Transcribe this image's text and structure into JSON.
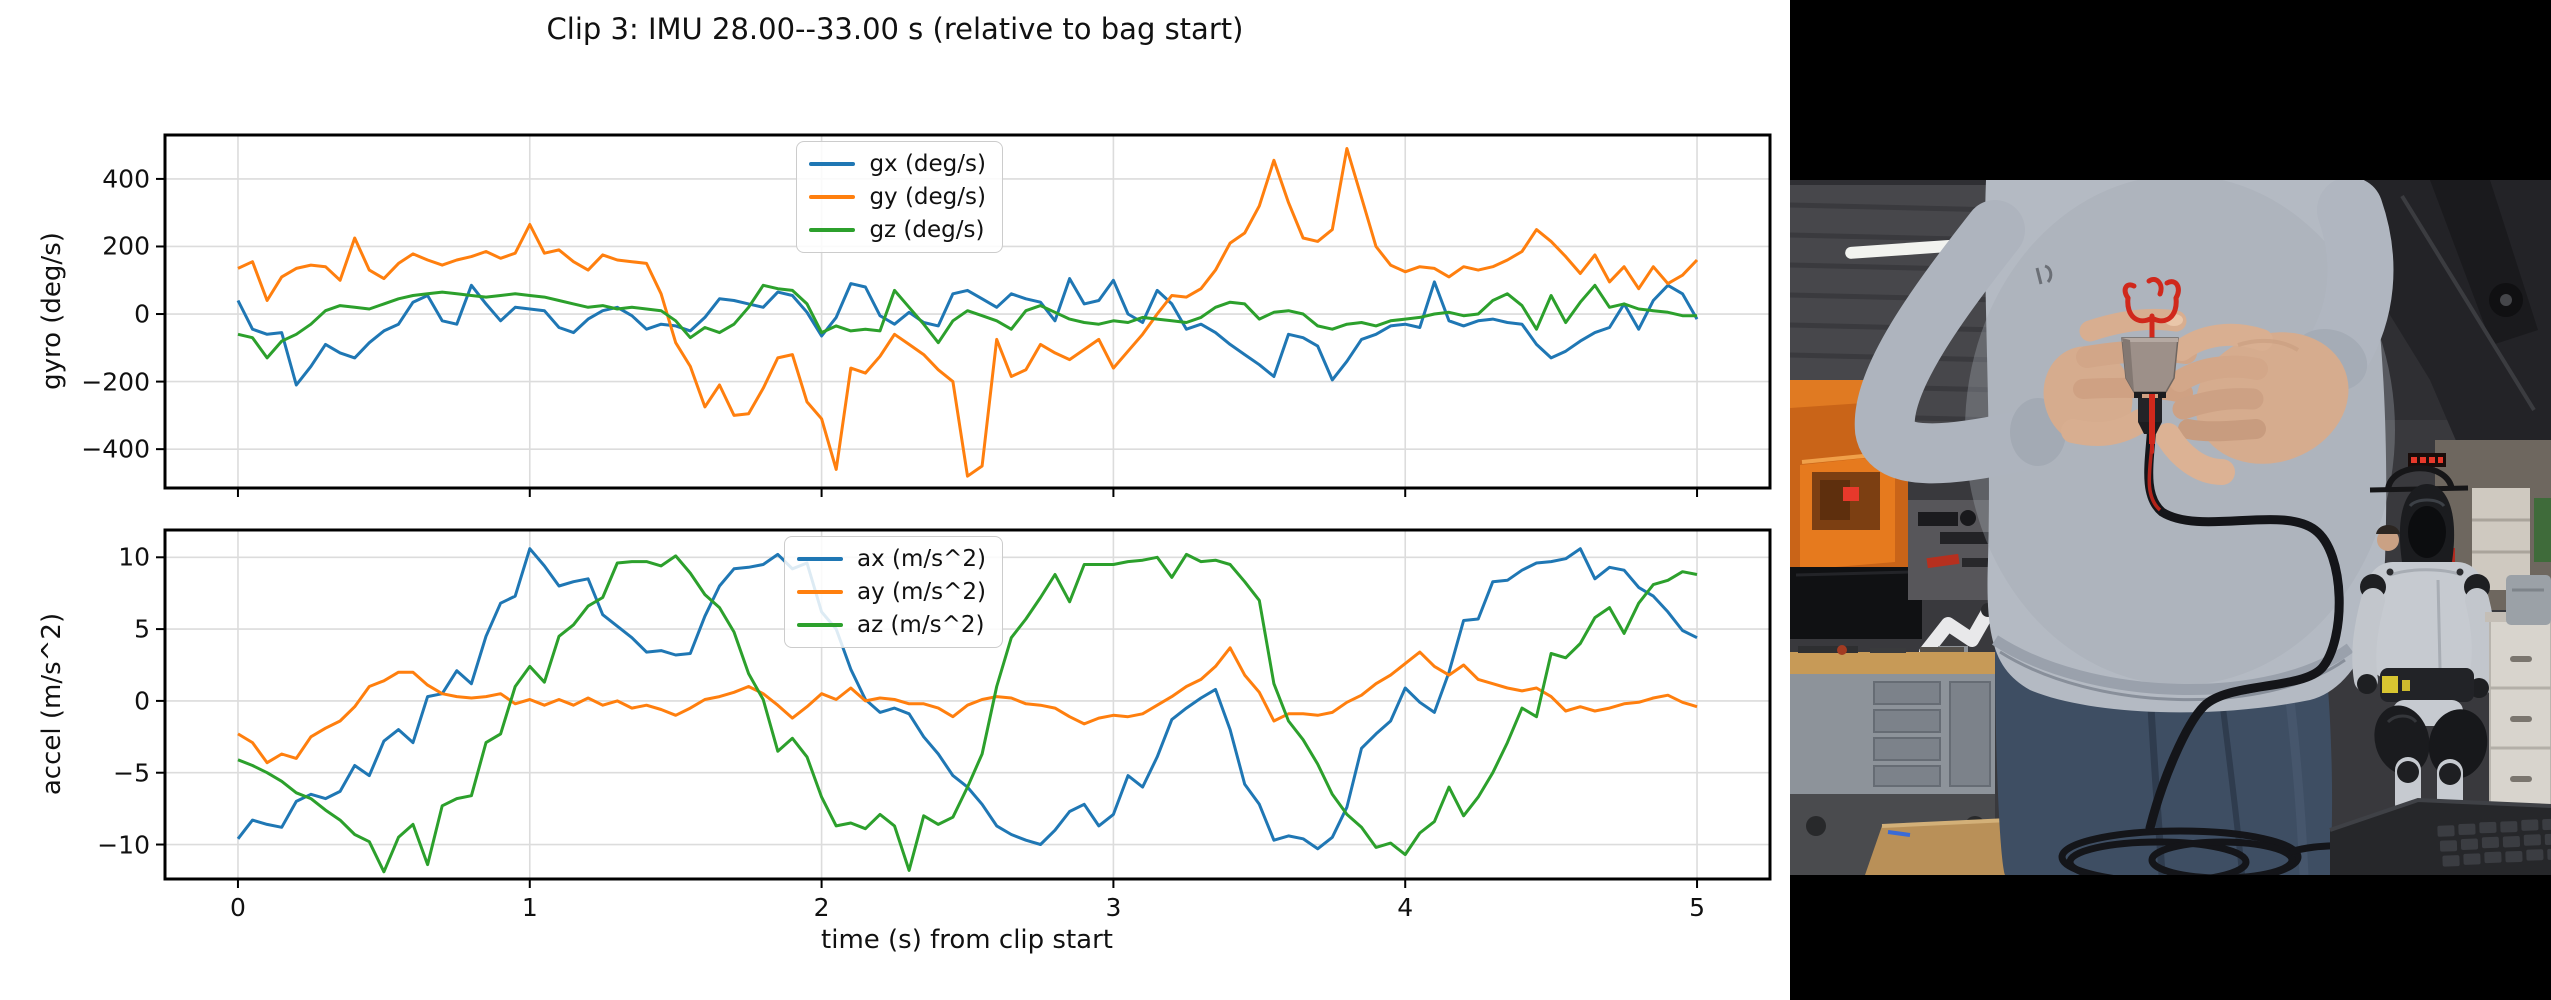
{
  "figure": {
    "title": "Clip 3: IMU 28.00--33.00 s (relative to bag start)",
    "xlabel": "time (s) from clip start",
    "gyro_ylabel": "gyro (deg/s)",
    "accel_ylabel": "accel (m/s^2)"
  },
  "colors": {
    "gx": "#1f77b4",
    "gy": "#ff7f0e",
    "gz": "#2ca02c",
    "ax": "#1f77b4",
    "ay": "#ff7f0e",
    "az": "#2ca02c",
    "grid": "#dcdcdc",
    "spine": "#000000"
  },
  "chart_data": [
    {
      "type": "line",
      "ylabel": "gyro (deg/s)",
      "legend": [
        "gx (deg/s)",
        "gy (deg/s)",
        "gz (deg/s)"
      ],
      "legend_position": "upper right",
      "grid": true,
      "x_start": 0,
      "x_step": 0.05,
      "n_points": 101,
      "xlim": [
        -0.25,
        5.25
      ],
      "ylim": [
        -515,
        530
      ],
      "xticks": [
        0,
        1,
        2,
        3,
        4,
        5
      ],
      "yticks": [
        -400,
        -200,
        0,
        200,
        400
      ],
      "series": [
        {
          "name": "gx (deg/s)",
          "color": "#1f77b4",
          "values": [
            40,
            -45,
            -60,
            -55,
            -210,
            -155,
            -90,
            -115,
            -130,
            -85,
            -50,
            -30,
            35,
            55,
            -20,
            -30,
            85,
            30,
            -20,
            20,
            15,
            10,
            -40,
            -55,
            -15,
            10,
            20,
            -5,
            -45,
            -30,
            -35,
            -50,
            -10,
            45,
            40,
            30,
            20,
            65,
            55,
            5,
            -65,
            -10,
            90,
            80,
            -5,
            -30,
            5,
            -25,
            -35,
            60,
            70,
            45,
            20,
            60,
            45,
            35,
            -20,
            105,
            30,
            40,
            100,
            0,
            -25,
            70,
            30,
            -45,
            -30,
            -55,
            -90,
            -120,
            -150,
            -185,
            -60,
            -70,
            -95,
            -195,
            -140,
            -75,
            -60,
            -35,
            -30,
            -40,
            95,
            -20,
            -35,
            -20,
            -15,
            -25,
            -30,
            -90,
            -130,
            -110,
            -80,
            -55,
            -40,
            30,
            -45,
            40,
            85,
            60,
            -15
          ]
        },
        {
          "name": "gy (deg/s)",
          "color": "#ff7f0e",
          "values": [
            135,
            155,
            40,
            110,
            135,
            145,
            140,
            100,
            225,
            130,
            105,
            150,
            178,
            160,
            145,
            160,
            170,
            185,
            165,
            180,
            265,
            180,
            190,
            155,
            130,
            175,
            160,
            155,
            150,
            60,
            -85,
            -155,
            -275,
            -210,
            -300,
            -295,
            -220,
            -130,
            -120,
            -260,
            -310,
            -460,
            -160,
            -175,
            -125,
            -60,
            -90,
            -120,
            -165,
            -200,
            -480,
            -450,
            -75,
            -185,
            -165,
            -90,
            -115,
            -135,
            -105,
            -75,
            -160,
            -110,
            -60,
            0,
            55,
            50,
            75,
            130,
            210,
            240,
            320,
            455,
            330,
            225,
            215,
            250,
            490,
            345,
            200,
            145,
            125,
            140,
            135,
            110,
            140,
            130,
            140,
            160,
            185,
            250,
            215,
            170,
            120,
            175,
            95,
            140,
            75,
            140,
            90,
            115,
            160
          ]
        },
        {
          "name": "gz (deg/s)",
          "color": "#2ca02c",
          "values": [
            -60,
            -70,
            -130,
            -80,
            -60,
            -30,
            10,
            25,
            20,
            15,
            30,
            45,
            55,
            60,
            65,
            60,
            55,
            50,
            55,
            60,
            55,
            50,
            40,
            30,
            20,
            25,
            15,
            20,
            15,
            10,
            -20,
            -70,
            -40,
            -55,
            -30,
            20,
            85,
            75,
            70,
            30,
            -55,
            -35,
            -50,
            -45,
            -50,
            70,
            20,
            -30,
            -85,
            -20,
            10,
            -5,
            -20,
            -45,
            10,
            25,
            5,
            -15,
            -25,
            -30,
            -20,
            -25,
            -10,
            -15,
            -20,
            -25,
            -10,
            20,
            35,
            30,
            -15,
            5,
            10,
            0,
            -35,
            -45,
            -30,
            -25,
            -35,
            -20,
            -15,
            -10,
            0,
            5,
            -5,
            0,
            40,
            60,
            25,
            -45,
            55,
            -25,
            35,
            85,
            20,
            30,
            15,
            10,
            5,
            -5,
            -5
          ]
        }
      ]
    },
    {
      "type": "line",
      "ylabel": "accel (m/s^2)",
      "xlabel": "time (s) from clip start",
      "legend": [
        "ax (m/s^2)",
        "ay (m/s^2)",
        "az (m/s^2)"
      ],
      "legend_position": "upper right",
      "grid": true,
      "x_start": 0,
      "x_step": 0.05,
      "n_points": 101,
      "xlim": [
        -0.25,
        5.25
      ],
      "ylim": [
        -12.4,
        11.9
      ],
      "xticks": [
        0,
        1,
        2,
        3,
        4,
        5
      ],
      "yticks": [
        -10,
        -5,
        0,
        5,
        10
      ],
      "series": [
        {
          "name": "ax (m/s^2)",
          "color": "#1f77b4",
          "values": [
            -9.6,
            -8.3,
            -8.6,
            -8.8,
            -7.0,
            -6.5,
            -6.8,
            -6.3,
            -4.5,
            -5.2,
            -2.8,
            -2.0,
            -2.9,
            0.3,
            0.5,
            2.1,
            1.2,
            4.5,
            6.8,
            7.3,
            10.6,
            9.4,
            8.0,
            8.3,
            8.5,
            6.0,
            5.2,
            4.4,
            3.4,
            3.5,
            3.2,
            3.3,
            5.9,
            8.0,
            9.2,
            9.3,
            9.5,
            10.2,
            9.2,
            9.6,
            6.2,
            5.0,
            2.2,
            0.1,
            -0.8,
            -0.5,
            -0.9,
            -2.5,
            -3.7,
            -5.2,
            -6.0,
            -7.2,
            -8.7,
            -9.3,
            -9.7,
            -10.0,
            -9.0,
            -7.7,
            -7.2,
            -8.7,
            -7.9,
            -5.2,
            -6.0,
            -3.9,
            -1.3,
            -0.5,
            0.2,
            0.8,
            -2.0,
            -5.8,
            -7.2,
            -9.7,
            -9.4,
            -9.6,
            -10.3,
            -9.5,
            -7.4,
            -3.3,
            -2.3,
            -1.4,
            0.9,
            -0.1,
            -0.8,
            2.0,
            5.6,
            5.7,
            8.3,
            8.4,
            9.1,
            9.6,
            9.7,
            9.9,
            10.6,
            8.5,
            9.3,
            9.1,
            7.9,
            7.3,
            6.2,
            4.9,
            4.4
          ]
        },
        {
          "name": "ay (m/s^2)",
          "color": "#ff7f0e",
          "values": [
            -2.3,
            -2.9,
            -4.3,
            -3.7,
            -4.0,
            -2.5,
            -1.9,
            -1.4,
            -0.4,
            1.0,
            1.4,
            2.0,
            2.0,
            1.1,
            0.5,
            0.3,
            0.2,
            0.3,
            0.5,
            -0.2,
            0.1,
            -0.3,
            0.1,
            -0.3,
            0.2,
            -0.3,
            0.0,
            -0.5,
            -0.3,
            -0.6,
            -1.0,
            -0.5,
            0.1,
            0.3,
            0.6,
            1.0,
            0.5,
            -0.3,
            -1.2,
            -0.4,
            0.5,
            0.1,
            0.9,
            0.0,
            0.2,
            0.1,
            -0.2,
            -0.2,
            -0.5,
            -1.1,
            -0.3,
            0.1,
            0.3,
            0.2,
            -0.2,
            -0.3,
            -0.5,
            -1.1,
            -1.6,
            -1.2,
            -1.0,
            -1.1,
            -0.9,
            -0.3,
            0.3,
            1.0,
            1.5,
            2.4,
            3.7,
            1.8,
            0.6,
            -1.4,
            -0.9,
            -0.9,
            -1.0,
            -0.8,
            -0.1,
            0.4,
            1.2,
            1.8,
            2.6,
            3.4,
            2.4,
            1.8,
            2.5,
            1.5,
            1.2,
            0.9,
            0.7,
            0.9,
            0.3,
            -0.7,
            -0.4,
            -0.7,
            -0.5,
            -0.2,
            -0.1,
            0.2,
            0.4,
            -0.1,
            -0.4
          ]
        },
        {
          "name": "az (m/s^2)",
          "color": "#2ca02c",
          "values": [
            -4.1,
            -4.5,
            -5.0,
            -5.6,
            -6.4,
            -6.8,
            -7.6,
            -8.3,
            -9.3,
            -9.8,
            -11.9,
            -9.5,
            -8.6,
            -11.4,
            -7.3,
            -6.8,
            -6.6,
            -2.9,
            -2.3,
            1.0,
            2.4,
            1.3,
            4.5,
            5.3,
            6.6,
            7.2,
            9.6,
            9.7,
            9.7,
            9.4,
            10.1,
            8.9,
            7.4,
            6.5,
            4.8,
            1.9,
            0.1,
            -3.5,
            -2.6,
            -3.9,
            -6.7,
            -8.7,
            -8.5,
            -8.9,
            -7.9,
            -8.7,
            -11.8,
            -8.0,
            -8.6,
            -8.1,
            -6.0,
            -3.7,
            1.0,
            4.4,
            5.7,
            7.2,
            8.8,
            6.9,
            9.5,
            9.5,
            9.5,
            9.7,
            9.8,
            10.0,
            8.6,
            10.2,
            9.7,
            9.8,
            9.5,
            8.3,
            7.0,
            1.2,
            -1.4,
            -2.7,
            -4.4,
            -6.5,
            -7.9,
            -8.8,
            -10.2,
            -9.9,
            -10.7,
            -9.2,
            -8.4,
            -6.0,
            -8.0,
            -6.7,
            -5.0,
            -2.9,
            -0.5,
            -1.1,
            3.3,
            3.0,
            4.0,
            5.8,
            6.5,
            4.7,
            6.8,
            8.1,
            8.4,
            9.0,
            8.8
          ]
        }
      ]
    }
  ],
  "photo": {
    "colors": {
      "letterbox": "#000000",
      "scene_bg": "#39393d",
      "hoodie": "#b4bac3",
      "hoodie_shadow": "#a2a8b3",
      "pants": "#3e4e63",
      "skin": "#d6ac8e",
      "skin_shadow": "#c89c7f",
      "orange_machine": "#c96418",
      "orange_window": "#e67a1e",
      "wood_bench": "#c79a57",
      "wood_table": "#b99058",
      "cabinet_gray": "#8d939a",
      "robot_body": "#c6cad0",
      "robot_joint": "#1e1f22",
      "white_cabinet": "#d8d4cd",
      "laptop": "#26272a",
      "cable": "#141519",
      "annotation_red": "#d0281c",
      "led_red": "#e8392b",
      "light_strip": "#f2f3ef"
    }
  }
}
